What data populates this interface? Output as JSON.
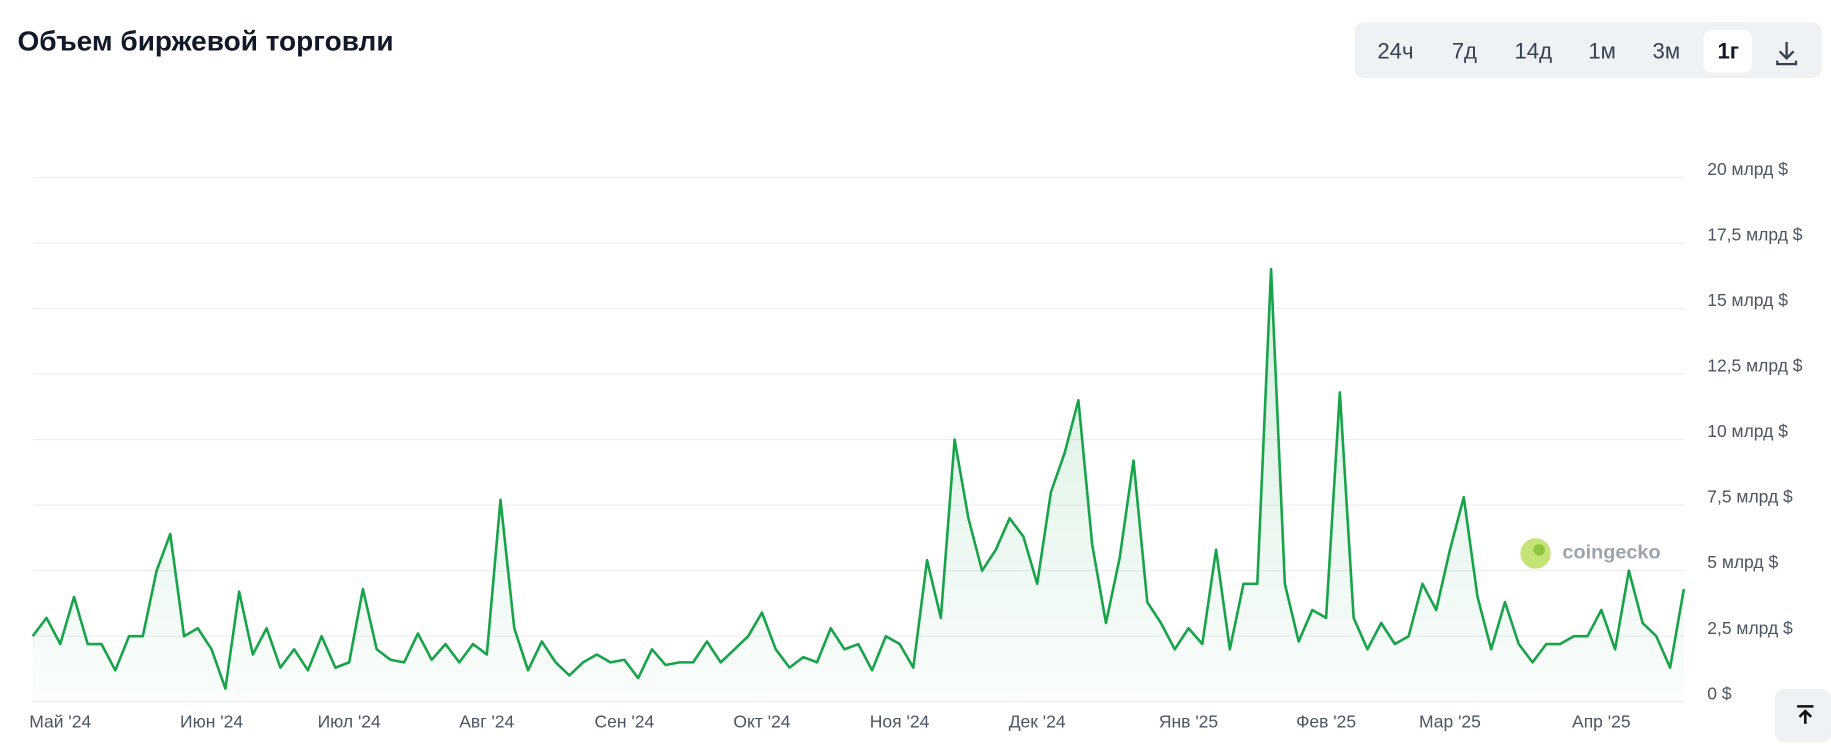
{
  "chart_data": {
    "type": "line",
    "title": "Объем биржевой торговли",
    "categories": [
      null,
      null,
      "Май '24",
      null,
      null,
      null,
      null,
      null,
      null,
      null,
      null,
      null,
      null,
      "Июн '24",
      null,
      null,
      null,
      null,
      null,
      null,
      null,
      null,
      null,
      "Июл '24",
      null,
      null,
      null,
      null,
      null,
      null,
      null,
      null,
      null,
      "Авг '24",
      null,
      null,
      null,
      null,
      null,
      null,
      null,
      null,
      null,
      "Сен '24",
      null,
      null,
      null,
      null,
      null,
      null,
      null,
      null,
      null,
      "Окт '24",
      null,
      null,
      null,
      null,
      null,
      null,
      null,
      null,
      null,
      "Ноя '24",
      null,
      null,
      null,
      null,
      null,
      null,
      null,
      null,
      null,
      "Дек '24",
      null,
      null,
      null,
      null,
      null,
      null,
      null,
      null,
      null,
      null,
      "Янв '25",
      null,
      null,
      null,
      null,
      null,
      null,
      null,
      null,
      null,
      "Фев '25",
      null,
      null,
      null,
      null,
      null,
      null,
      null,
      null,
      "Мар '25",
      null,
      null,
      null,
      null,
      null,
      null,
      null,
      null,
      null,
      null,
      "Апр '25",
      null,
      null,
      null,
      null,
      null,
      null
    ],
    "series": [
      {
        "name": "Объем",
        "color": "#16a34a",
        "values": [
          2.5,
          3.2,
          2.2,
          4.0,
          2.2,
          2.2,
          1.2,
          2.5,
          2.5,
          5.0,
          6.4,
          2.5,
          2.8,
          2.0,
          0.5,
          4.2,
          1.8,
          2.8,
          1.3,
          2.0,
          1.2,
          2.5,
          1.3,
          1.5,
          4.3,
          2.0,
          1.6,
          1.5,
          2.6,
          1.6,
          2.2,
          1.5,
          2.2,
          1.8,
          7.7,
          2.8,
          1.2,
          2.3,
          1.5,
          1.0,
          1.5,
          1.8,
          1.5,
          1.6,
          0.9,
          2.0,
          1.4,
          1.5,
          1.5,
          2.3,
          1.5,
          2.0,
          2.5,
          3.4,
          2.0,
          1.3,
          1.7,
          1.5,
          2.8,
          2.0,
          2.2,
          1.2,
          2.5,
          2.2,
          1.3,
          5.4,
          3.2,
          10.0,
          7.0,
          5.0,
          5.8,
          7.0,
          6.3,
          4.5,
          8.0,
          9.5,
          11.5,
          6.0,
          3.0,
          5.5,
          9.2,
          3.8,
          3.0,
          2.0,
          2.8,
          2.2,
          5.8,
          2.0,
          4.5,
          4.5,
          16.5,
          4.5,
          2.3,
          3.5,
          3.2,
          11.8,
          3.2,
          2.0,
          3.0,
          2.2,
          2.5,
          4.5,
          3.5,
          5.8,
          7.8,
          4.0,
          2.0,
          3.8,
          2.2,
          1.5,
          2.2,
          2.2,
          2.5,
          2.5,
          3.5,
          2.0,
          5.0,
          3.0,
          2.5,
          1.3,
          4.3
        ]
      }
    ],
    "ylim": [
      0,
      20
    ],
    "yticks": [
      {
        "value": 0,
        "label": "0 $"
      },
      {
        "value": 2.5,
        "label": "2,5 млрд $"
      },
      {
        "value": 5,
        "label": "5 млрд $"
      },
      {
        "value": 7.5,
        "label": "7,5 млрд $"
      },
      {
        "value": 10,
        "label": "10 млрд $"
      },
      {
        "value": 12.5,
        "label": "12,5 млрд $"
      },
      {
        "value": 15,
        "label": "15 млрд $"
      },
      {
        "value": 17.5,
        "label": "17,5 млрд $"
      },
      {
        "value": 20,
        "label": "20 млрд $"
      }
    ],
    "grid": true,
    "watermark": "coingecko"
  },
  "controls": {
    "ranges": [
      "24ч",
      "7д",
      "14д",
      "1м",
      "3м",
      "1г"
    ],
    "active": 5
  }
}
